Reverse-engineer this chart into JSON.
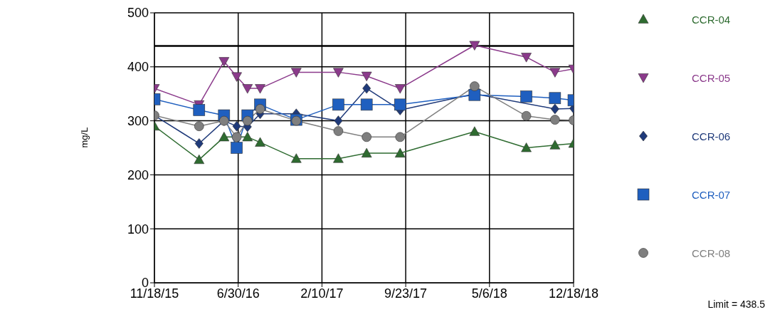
{
  "chart_data": {
    "type": "line",
    "ylabel": "mg/L",
    "xlim": [
      "2015-11-18",
      "2018-12-18"
    ],
    "xticks": [
      {
        "value": "2015-11-18",
        "label": "11/18/15"
      },
      {
        "value": "2016-06-30",
        "label": "6/30/16"
      },
      {
        "value": "2017-02-10",
        "label": "2/10/17"
      },
      {
        "value": "2017-09-23",
        "label": "9/23/17"
      },
      {
        "value": "2018-05-06",
        "label": "5/6/18"
      },
      {
        "value": "2018-12-18",
        "label": "12/18/18"
      }
    ],
    "ylim": [
      0,
      500
    ],
    "yticks": [
      0,
      100,
      200,
      300,
      400,
      500
    ],
    "grid": true,
    "legend": "right",
    "ref_lines": [
      {
        "axis": "y",
        "value": 438.5,
        "color": "#000000"
      }
    ],
    "annotations": [
      "Limit = 438.5"
    ],
    "series": [
      {
        "name": "CCR-04",
        "color": "#2e6b30",
        "marker": "triangle",
        "x": [
          "2015-11-18",
          "2016-03-17",
          "2016-05-23",
          "2016-07-25",
          "2016-08-28",
          "2016-12-03",
          "2017-03-26",
          "2017-06-10",
          "2017-09-08",
          "2018-03-27",
          "2018-08-13",
          "2018-10-29",
          "2018-12-18"
        ],
        "values": [
          290,
          228,
          270,
          270,
          260,
          230,
          230,
          240,
          240,
          280,
          250,
          255,
          258
        ]
      },
      {
        "name": "CCR-05",
        "color": "#8b3a8b",
        "marker": "triangle-down",
        "x": [
          "2015-11-18",
          "2016-03-17",
          "2016-05-23",
          "2016-06-26",
          "2016-07-25",
          "2016-08-28",
          "2016-12-03",
          "2017-03-26",
          "2017-06-10",
          "2017-09-08",
          "2018-03-27",
          "2018-08-13",
          "2018-10-29",
          "2018-12-18"
        ],
        "values": [
          360,
          330,
          410,
          382,
          360,
          360,
          390,
          390,
          383,
          360,
          440,
          418,
          390,
          396
        ]
      },
      {
        "name": "CCR-06",
        "color": "#1f3a7a",
        "marker": "diamond",
        "x": [
          "2015-11-18",
          "2016-03-17",
          "2016-05-23",
          "2016-06-26",
          "2016-07-25",
          "2016-08-28",
          "2016-12-03",
          "2017-03-26",
          "2017-06-10",
          "2017-09-08",
          "2018-03-27",
          "2018-10-29",
          "2018-12-18"
        ],
        "values": [
          310,
          258,
          300,
          290,
          289,
          313,
          313,
          300,
          360,
          320,
          350,
          322,
          323
        ]
      },
      {
        "name": "CCR-07",
        "color": "#1f5fbf",
        "marker": "square",
        "x": [
          "2015-11-18",
          "2016-03-17",
          "2016-05-23",
          "2016-06-26",
          "2016-07-25",
          "2016-08-28",
          "2016-12-03",
          "2017-03-26",
          "2017-06-10",
          "2017-09-08",
          "2018-03-27",
          "2018-08-13",
          "2018-10-29",
          "2018-12-18"
        ],
        "values": [
          340,
          320,
          310,
          250,
          310,
          330,
          302,
          330,
          330,
          330,
          348,
          345,
          342,
          338
        ]
      },
      {
        "name": "CCR-08",
        "color": "#7f7f7f",
        "marker": "circle",
        "x": [
          "2015-11-18",
          "2016-03-17",
          "2016-05-23",
          "2016-06-26",
          "2016-07-25",
          "2016-08-28",
          "2016-12-03",
          "2017-03-26",
          "2017-06-10",
          "2017-09-08",
          "2018-03-27",
          "2018-08-13",
          "2018-10-29",
          "2018-12-18"
        ],
        "values": [
          310,
          290,
          300,
          270,
          300,
          322,
          300,
          281,
          270,
          270,
          364,
          309,
          302,
          301
        ]
      }
    ]
  }
}
